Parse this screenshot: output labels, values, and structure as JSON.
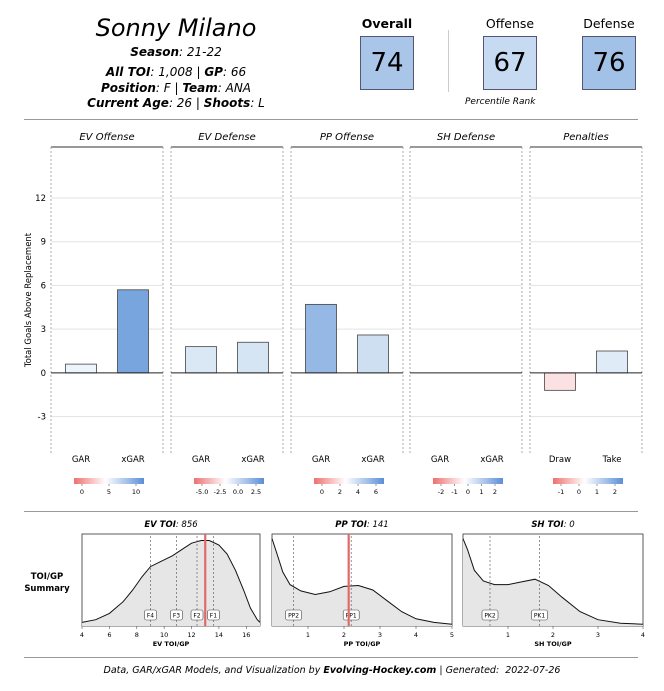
{
  "player": {
    "name": "Sonny Milano",
    "season_label": "Season",
    "season": "21-22",
    "toi_label": "All TOI",
    "toi": "1,008",
    "gp_label": "GP",
    "gp": "66",
    "position_label": "Position",
    "position": "F",
    "team_label": "Team",
    "team": "ANA",
    "age_label": "Current Age",
    "age": "26",
    "shoots_label": "Shoots",
    "shoots": "L"
  },
  "percentiles": {
    "overall_label": "Overall",
    "overall": "74",
    "offense_label": "Offense",
    "offense": "67",
    "defense_label": "Defense",
    "defense": "76",
    "note": "Percentile Rank"
  },
  "chart_data": [
    {
      "type": "bar",
      "ylabel": "Total Goals Above Replacement",
      "ylim": [
        -5.5,
        15.5
      ],
      "yticks": [
        -3,
        0,
        3,
        6,
        9,
        12
      ],
      "panels": [
        {
          "title": "EV Offense",
          "categories": [
            "GAR",
            "xGAR"
          ],
          "values": [
            0.6,
            5.7
          ],
          "colorbar": {
            "ticks": [
              "0",
              "5",
              "10"
            ]
          }
        },
        {
          "title": "EV Defense",
          "categories": [
            "GAR",
            "xGAR"
          ],
          "values": [
            1.8,
            2.1
          ],
          "colorbar": {
            "ticks": [
              "-5.0",
              "-2.5",
              "0.0",
              "2.5"
            ]
          }
        },
        {
          "title": "PP Offense",
          "categories": [
            "GAR",
            "xGAR"
          ],
          "values": [
            4.7,
            2.6
          ],
          "colorbar": {
            "ticks": [
              "0",
              "2",
              "4",
              "6"
            ]
          }
        },
        {
          "title": "SH Defense",
          "categories": [
            "GAR",
            "xGAR"
          ],
          "values": [
            0,
            0
          ],
          "colorbar": {
            "ticks": [
              "-2",
              "-1",
              "0",
              "1",
              "2"
            ]
          }
        },
        {
          "title": "Penalties",
          "categories": [
            "Draw",
            "Take"
          ],
          "values": [
            -1.2,
            1.5
          ],
          "colorbar": {
            "ticks": [
              "-1",
              "0",
              "1",
              "2"
            ]
          }
        }
      ]
    },
    {
      "type": "area",
      "summary_label": "TOI/GP Summary",
      "panels": [
        {
          "title_label": "EV TOI",
          "title_value": "856",
          "xlabel": "EV TOI/GP",
          "xlim": [
            4,
            17
          ],
          "xticks": [
            4,
            6,
            8,
            10,
            12,
            14,
            16
          ],
          "player_value": 13.0,
          "markers": [
            {
              "label": "F4",
              "x": 9.0
            },
            {
              "label": "F3",
              "x": 10.9
            },
            {
              "label": "F2",
              "x": 12.4
            },
            {
              "label": "F1",
              "x": 13.6
            }
          ],
          "density": [
            [
              4.0,
              0.04
            ],
            [
              5.0,
              0.07
            ],
            [
              6.0,
              0.14
            ],
            [
              7.0,
              0.27
            ],
            [
              7.7,
              0.4
            ],
            [
              8.4,
              0.55
            ],
            [
              9.0,
              0.66
            ],
            [
              9.8,
              0.72
            ],
            [
              10.6,
              0.78
            ],
            [
              11.4,
              0.86
            ],
            [
              12.0,
              0.92
            ],
            [
              12.7,
              0.95
            ],
            [
              13.3,
              0.95
            ],
            [
              14.0,
              0.9
            ],
            [
              14.6,
              0.8
            ],
            [
              15.2,
              0.62
            ],
            [
              15.8,
              0.4
            ],
            [
              16.3,
              0.2
            ],
            [
              16.8,
              0.07
            ],
            [
              17.0,
              0.04
            ]
          ]
        },
        {
          "title_label": "PP TOI",
          "title_value": "141",
          "xlabel": "PP TOI/GP",
          "xlim": [
            0,
            5
          ],
          "xticks": [
            1,
            2,
            3,
            4,
            5
          ],
          "player_value": 2.13,
          "markers": [
            {
              "label": "PP2",
              "x": 0.6
            },
            {
              "label": "PP1",
              "x": 2.2
            }
          ],
          "density": [
            [
              0.0,
              0.97
            ],
            [
              0.1,
              0.85
            ],
            [
              0.3,
              0.6
            ],
            [
              0.5,
              0.46
            ],
            [
              0.8,
              0.39
            ],
            [
              1.2,
              0.35
            ],
            [
              1.6,
              0.38
            ],
            [
              2.0,
              0.44
            ],
            [
              2.4,
              0.45
            ],
            [
              2.8,
              0.4
            ],
            [
              3.2,
              0.28
            ],
            [
              3.6,
              0.16
            ],
            [
              4.0,
              0.08
            ],
            [
              4.5,
              0.04
            ],
            [
              5.0,
              0.02
            ]
          ]
        },
        {
          "title_label": "SH TOI",
          "title_value": "0",
          "xlabel": "SH TOI/GP",
          "xlim": [
            0,
            4
          ],
          "xticks": [
            1,
            2,
            3,
            4
          ],
          "player_value": null,
          "markers": [
            {
              "label": "PK2",
              "x": 0.6
            },
            {
              "label": "PK1",
              "x": 1.7
            }
          ],
          "density": [
            [
              0.0,
              0.97
            ],
            [
              0.1,
              0.85
            ],
            [
              0.25,
              0.62
            ],
            [
              0.45,
              0.5
            ],
            [
              0.7,
              0.46
            ],
            [
              1.0,
              0.46
            ],
            [
              1.3,
              0.49
            ],
            [
              1.6,
              0.52
            ],
            [
              1.9,
              0.45
            ],
            [
              2.2,
              0.32
            ],
            [
              2.6,
              0.16
            ],
            [
              3.0,
              0.07
            ],
            [
              3.5,
              0.03
            ],
            [
              4.0,
              0.02
            ]
          ]
        }
      ]
    }
  ],
  "footer": {
    "prefix": "Data, GAR/xGAR Models, and Visualization by",
    "brand": "Evolving-Hockey.com",
    "generated_label": "| Generated:",
    "generated": "2022-07-26"
  }
}
